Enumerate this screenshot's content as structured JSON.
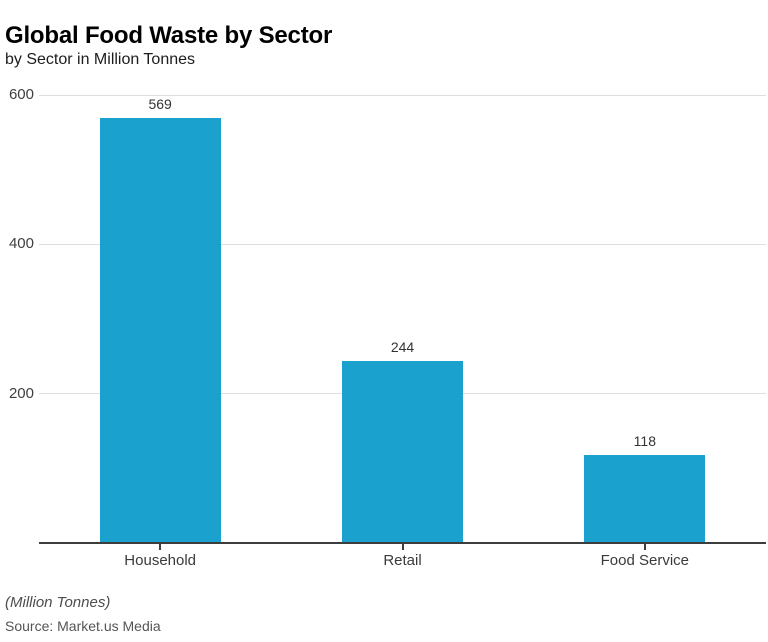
{
  "header": {
    "title": "Global Food Waste by Sector",
    "subtitle": "by Sector in Million Tonnes"
  },
  "footer": {
    "unit_note": "(Million Tonnes)",
    "source": "Source: Market.us Media"
  },
  "colors": {
    "bar": "#1aa1ce",
    "gridline": "#dedede",
    "axis_line": "#3d3d3d",
    "tick_label": "#3f3f3f"
  },
  "chart_data": {
    "type": "bar",
    "title": "Global Food Waste by Sector",
    "subtitle": "by Sector in Million Tonnes",
    "categories": [
      "Household",
      "Retail",
      "Food Service"
    ],
    "values": [
      569,
      244,
      118
    ],
    "value_labels": [
      "569",
      "244",
      "118"
    ],
    "ytick_labels": [
      "200",
      "400",
      "600"
    ],
    "yticks": [
      200,
      400,
      600
    ],
    "ylim": [
      0,
      600
    ],
    "xlabel": "",
    "ylabel": "",
    "grid": true,
    "legend": false,
    "unit_note": "(Million Tonnes)",
    "source": "Source: Market.us Media",
    "bar_color": "#1aa1ce"
  }
}
